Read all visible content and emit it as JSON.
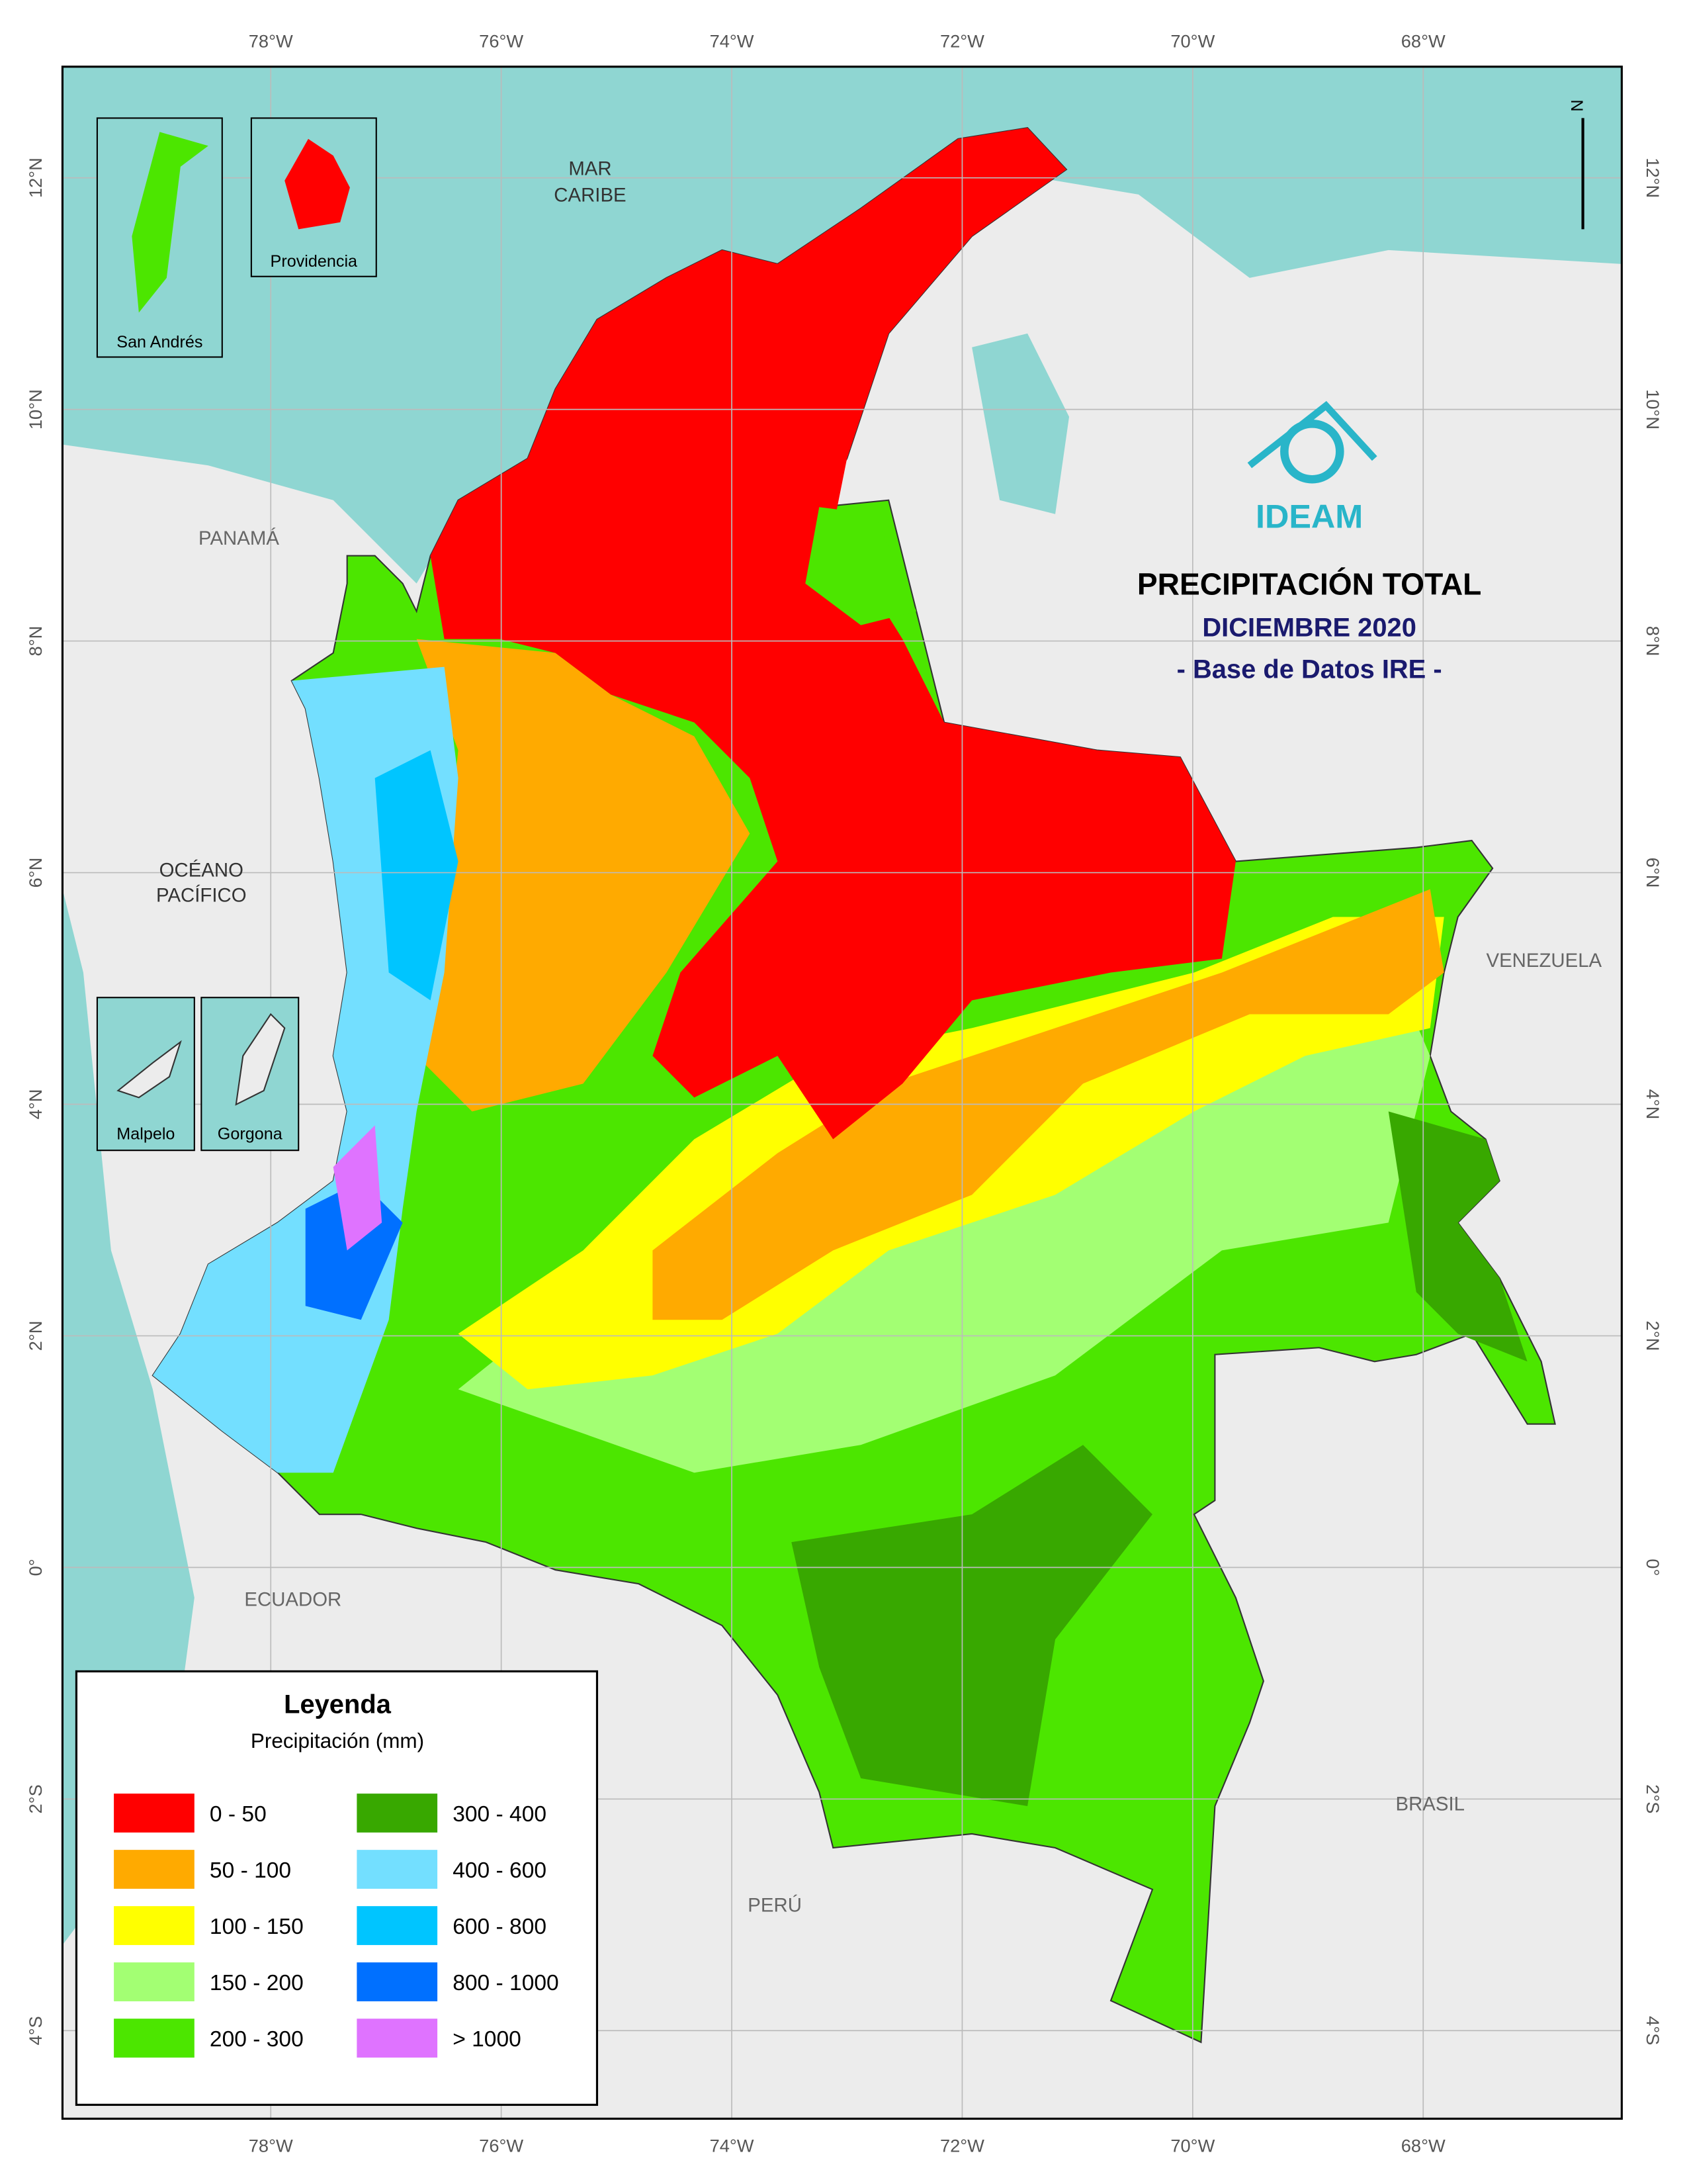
{
  "title": "PRECIPITACIÓN TOTAL",
  "subtitle": "DICIEMBRE 2020",
  "source": "- Base de Datos IRE -",
  "logo": "IDEAM",
  "north": "N",
  "longitude_labels": [
    "78°W",
    "76°W",
    "74°W",
    "72°W",
    "70°W",
    "68°W"
  ],
  "latitude_labels": [
    "12°N",
    "10°N",
    "8°N",
    "6°N",
    "4°N",
    "2°N",
    "0°",
    "2°S",
    "4°S"
  ],
  "places": {
    "caribbean": [
      "MAR",
      "CARIBE"
    ],
    "pacific": [
      "OCÉANO",
      "PACÍFICO"
    ],
    "panama": "PANAMÁ",
    "venezuela": "VENEZUELA",
    "ecuador": "ECUADOR",
    "brasil": "BRASIL",
    "peru": "PERÚ"
  },
  "insets": [
    "San Andrés",
    "Providencia",
    "Malpelo",
    "Gorgona"
  ],
  "legend": {
    "title": "Leyenda",
    "subtitle": "Precipitación (mm)",
    "classes": [
      {
        "label": "0 - 50",
        "color": "#ff0000"
      },
      {
        "label": "50 - 100",
        "color": "#ffaa00"
      },
      {
        "label": "100 - 150",
        "color": "#ffff00"
      },
      {
        "label": "150 - 200",
        "color": "#a3ff73"
      },
      {
        "label": "200 - 300",
        "color": "#4ce600"
      },
      {
        "label": "300 - 400",
        "color": "#38a800"
      },
      {
        "label": "400 - 600",
        "color": "#73dfff"
      },
      {
        "label": "600 - 800",
        "color": "#00c5ff"
      },
      {
        "label": "800 - 1000",
        "color": "#0070ff"
      },
      {
        "label": "> 1000",
        "color": "#df73ff"
      }
    ]
  }
}
